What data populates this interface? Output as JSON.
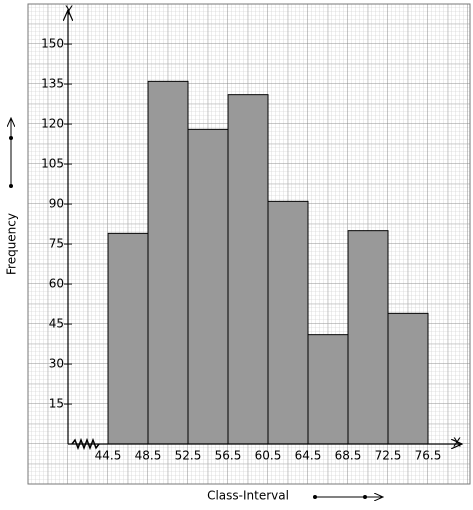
{
  "chart_data": {
    "type": "histogram",
    "bins": [
      44.5,
      48.5,
      52.5,
      56.5,
      60.5,
      64.5,
      68.5,
      72.5,
      76.5
    ],
    "values": [
      79,
      136,
      118,
      131,
      91,
      41,
      80,
      49
    ],
    "color": "#999999",
    "x_label": "Class-Interval",
    "y_label": "Frequency",
    "x_axis_name": "X",
    "y_axis_name": "Y",
    "xlim": [
      36.5,
      80.7
    ],
    "ylim": [
      -15,
      165
    ],
    "yticks": [
      15,
      30,
      45,
      60,
      75,
      90,
      105,
      120,
      135,
      150
    ],
    "grid": true
  }
}
